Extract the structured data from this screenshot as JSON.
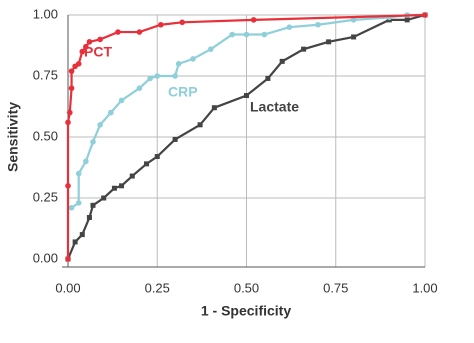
{
  "chart_data": {
    "type": "line",
    "xlabel": "1 - Specificity",
    "ylabel": "Sensitivity",
    "xlim": [
      0,
      1
    ],
    "ylim": [
      0,
      1
    ],
    "xticks": [
      {
        "value": 0,
        "label": "0.00"
      },
      {
        "value": 0.25,
        "label": "0.25"
      },
      {
        "value": 0.5,
        "label": "0.50"
      },
      {
        "value": 0.75,
        "label": "0.75"
      },
      {
        "value": 1,
        "label": "1.00"
      }
    ],
    "yticks": [
      {
        "value": 0,
        "label": "0.00"
      },
      {
        "value": 0.25,
        "label": "0.25"
      },
      {
        "value": 0.5,
        "label": "0.50"
      },
      {
        "value": 0.75,
        "label": "0.75"
      },
      {
        "value": 1,
        "label": "1.00"
      }
    ],
    "grid": true,
    "series": [
      {
        "name": "PCT",
        "color": "#e8303a",
        "marker": "circle",
        "x": [
          0,
          0,
          0,
          0.005,
          0.01,
          0.01,
          0.02,
          0.03,
          0.04,
          0.05,
          0.06,
          0.09,
          0.14,
          0.2,
          0.26,
          0.32,
          0.52,
          1.0
        ],
        "values": [
          0,
          0.3,
          0.56,
          0.6,
          0.7,
          0.77,
          0.79,
          0.8,
          0.85,
          0.87,
          0.89,
          0.9,
          0.93,
          0.93,
          0.96,
          0.97,
          0.98,
          1.0
        ]
      },
      {
        "name": "CRP",
        "color": "#8ecfd9",
        "marker": "circle",
        "x": [
          0.01,
          0.03,
          0.03,
          0.05,
          0.07,
          0.09,
          0.12,
          0.15,
          0.2,
          0.23,
          0.25,
          0.3,
          0.31,
          0.35,
          0.4,
          0.46,
          0.5,
          0.55,
          0.62,
          0.7,
          0.8,
          0.9,
          0.95,
          1.0
        ],
        "values": [
          0.21,
          0.23,
          0.35,
          0.4,
          0.48,
          0.55,
          0.6,
          0.65,
          0.7,
          0.74,
          0.75,
          0.75,
          0.8,
          0.82,
          0.86,
          0.92,
          0.92,
          0.92,
          0.95,
          0.96,
          0.98,
          0.99,
          1.0,
          1.0
        ]
      },
      {
        "name": "Lactate",
        "color": "#444444",
        "marker": "square",
        "x": [
          0,
          0.02,
          0.04,
          0.06,
          0.07,
          0.1,
          0.13,
          0.15,
          0.18,
          0.22,
          0.25,
          0.3,
          0.37,
          0.41,
          0.5,
          0.56,
          0.6,
          0.66,
          0.73,
          0.8,
          0.9,
          0.95,
          1.0
        ],
        "values": [
          0,
          0.07,
          0.1,
          0.17,
          0.22,
          0.25,
          0.29,
          0.3,
          0.34,
          0.39,
          0.42,
          0.49,
          0.55,
          0.62,
          0.67,
          0.74,
          0.81,
          0.86,
          0.89,
          0.91,
          0.98,
          0.98,
          1.0
        ]
      }
    ]
  }
}
